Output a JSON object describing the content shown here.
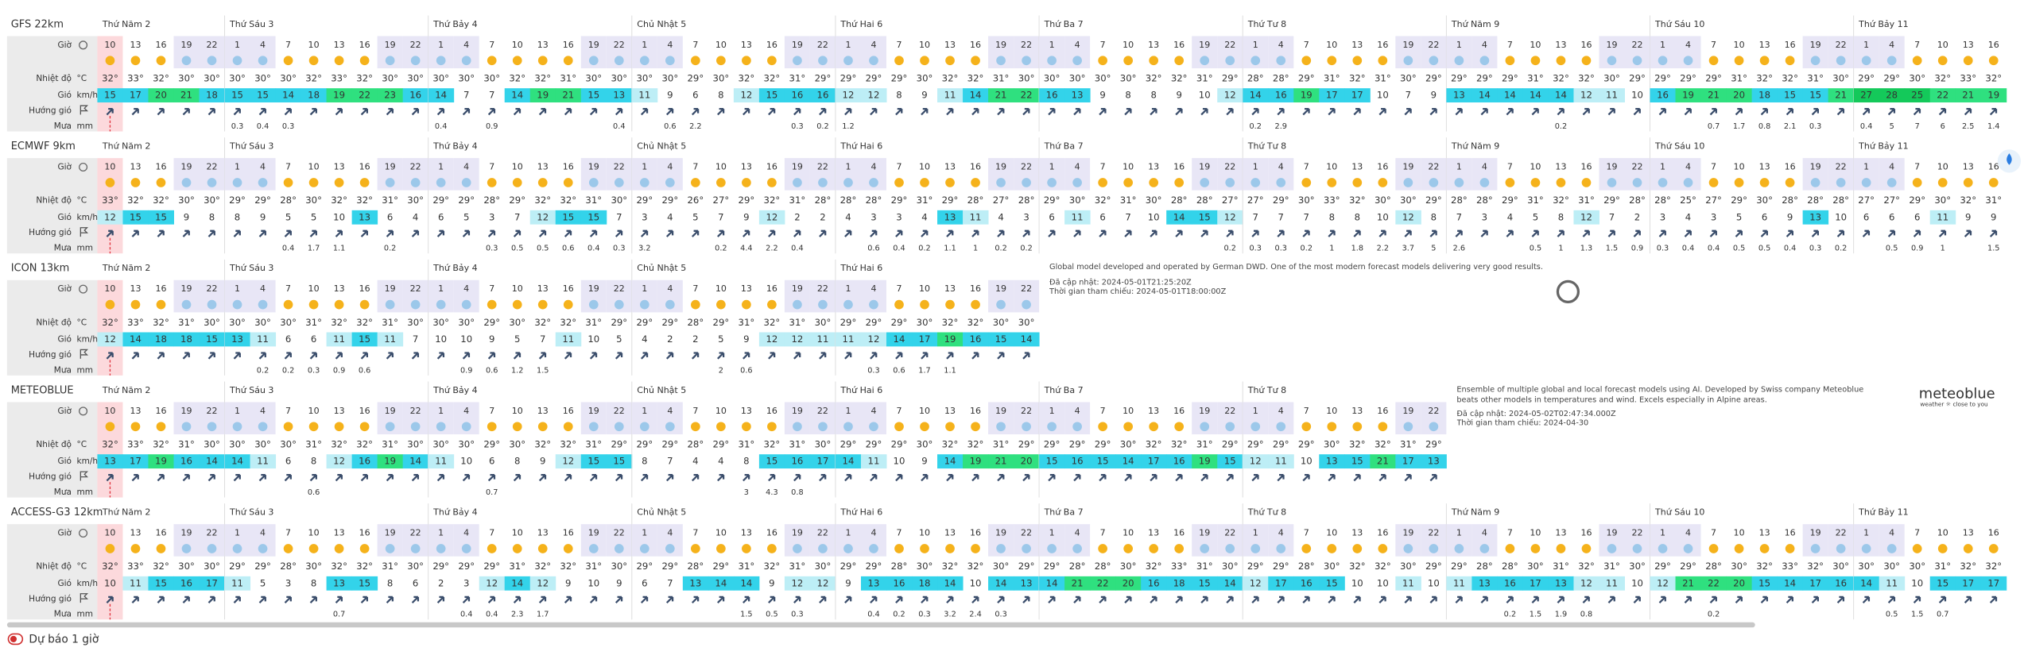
{
  "labels": {
    "hour": "Giờ",
    "temperature": "Nhiệt độ",
    "wind": "Gió",
    "direction": "Hướng gió",
    "rain": "Mưa"
  },
  "units": {
    "temperature": "°C",
    "wind": "km/h",
    "rain": "mm"
  },
  "days": [
    "Thứ Năm 2",
    "Thứ Sáu 3",
    "Thứ Bảy 4",
    "Chủ Nhật 5",
    "Thứ Hai 6",
    "Thứ Ba 7",
    "Thứ Tư 8",
    "Thứ Năm 9",
    "Thứ Sáu 10",
    "Thứ Bảy 11"
  ],
  "hours": [
    10,
    13,
    16,
    19,
    22,
    1,
    4,
    7,
    10,
    13,
    16,
    19,
    22,
    1,
    4,
    7,
    10,
    13,
    16,
    19,
    22,
    1,
    4,
    7,
    10,
    13,
    16,
    19,
    22,
    1,
    4,
    7,
    10,
    13,
    16,
    19,
    22,
    1,
    4,
    7,
    10,
    13,
    16,
    19,
    22,
    1,
    4,
    7,
    10,
    13,
    16,
    19,
    22,
    1,
    4,
    7,
    10,
    13,
    16,
    19,
    22,
    1,
    4,
    7,
    10,
    13,
    16,
    19,
    22,
    1,
    4,
    7,
    10,
    13,
    16
  ],
  "models": [
    {
      "name": "GFS 22km",
      "temperature": [
        "32°",
        "33°",
        "32°",
        "30°",
        "30°",
        "30°",
        "30°",
        "30°",
        "32°",
        "33°",
        "32°",
        "30°",
        "30°",
        "30°",
        "30°",
        "30°",
        "32°",
        "32°",
        "31°",
        "30°",
        "30°",
        "30°",
        "30°",
        "29°",
        "30°",
        "32°",
        "32°",
        "31°",
        "29°",
        "29°",
        "29°",
        "29°",
        "30°",
        "32°",
        "32°",
        "31°",
        "30°",
        "30°",
        "30°",
        "30°",
        "30°",
        "32°",
        "32°",
        "31°",
        "29°",
        "28°",
        "28°",
        "29°",
        "31°",
        "32°",
        "31°",
        "30°",
        "29°",
        "29°",
        "29°",
        "29°",
        "31°",
        "32°",
        "32°",
        "30°",
        "29°",
        "29°",
        "29°",
        "29°",
        "31°",
        "32°",
        "32°",
        "31°",
        "30°",
        "29°",
        "29°",
        "30°",
        "32°",
        "33°",
        "32°"
      ],
      "wind": [
        15,
        17,
        20,
        21,
        18,
        15,
        15,
        14,
        18,
        19,
        22,
        23,
        16,
        14,
        7,
        7,
        14,
        19,
        21,
        15,
        13,
        11,
        9,
        6,
        8,
        12,
        15,
        16,
        16,
        12,
        12,
        8,
        9,
        11,
        14,
        21,
        22,
        16,
        13,
        9,
        8,
        8,
        9,
        10,
        12,
        14,
        16,
        19,
        17,
        17,
        10,
        7,
        9,
        13,
        14,
        14,
        14,
        14,
        12,
        11,
        10,
        16,
        19,
        21,
        20,
        18,
        15,
        15,
        21,
        27,
        28,
        25,
        22,
        21,
        19
      ],
      "rain": [
        null,
        null,
        null,
        null,
        null,
        0.3,
        0.4,
        0.3,
        null,
        null,
        null,
        null,
        null,
        0.4,
        null,
        0.9,
        null,
        null,
        null,
        null,
        0.4,
        null,
        0.6,
        2.2,
        null,
        null,
        null,
        0.3,
        0.2,
        1.2,
        null,
        null,
        null,
        null,
        null,
        null,
        null,
        null,
        null,
        null,
        null,
        null,
        null,
        null,
        null,
        0.2,
        2.9,
        null,
        null,
        null,
        null,
        null,
        null,
        null,
        null,
        null,
        null,
        0.2,
        null,
        null,
        null,
        null,
        null,
        0.7,
        1.7,
        0.8,
        2.1,
        0.3,
        null,
        0.4,
        5,
        7,
        6,
        2.5,
        1.4
      ]
    },
    {
      "name": "ECMWF 9km",
      "temperature": [
        "33°",
        "32°",
        "32°",
        "30°",
        "30°",
        "29°",
        "29°",
        "28°",
        "30°",
        "32°",
        "32°",
        "31°",
        "30°",
        "29°",
        "29°",
        "28°",
        "29°",
        "32°",
        "32°",
        "31°",
        "30°",
        "29°",
        "29°",
        "26°",
        "27°",
        "29°",
        "32°",
        "31°",
        "28°",
        "28°",
        "28°",
        "29°",
        "31°",
        "29°",
        "28°",
        "27°",
        "28°",
        "29°",
        "30°",
        "32°",
        "31°",
        "30°",
        "28°",
        "28°",
        "27°",
        "27°",
        "29°",
        "30°",
        "33°",
        "32°",
        "30°",
        "30°",
        "29°",
        "28°",
        "28°",
        "29°",
        "31°",
        "32°",
        "31°",
        "29°",
        "28°",
        "28°",
        "25°",
        "27°",
        "29°",
        "30°",
        "28°",
        "28°",
        "28°",
        "27°",
        "27°",
        "29°",
        "30°",
        "32°",
        "31°"
      ],
      "wind": [
        12,
        15,
        15,
        9,
        8,
        8,
        9,
        5,
        5,
        10,
        13,
        6,
        4,
        6,
        5,
        3,
        7,
        12,
        15,
        15,
        7,
        3,
        4,
        5,
        7,
        9,
        12,
        2,
        2,
        4,
        3,
        3,
        4,
        13,
        11,
        4,
        3,
        6,
        11,
        6,
        7,
        10,
        14,
        15,
        12,
        7,
        7,
        7,
        8,
        8,
        10,
        12,
        8,
        7,
        3,
        4,
        5,
        8,
        12,
        7,
        2,
        3,
        4,
        3,
        5,
        6,
        9,
        13,
        10,
        6,
        6,
        6,
        11,
        9,
        9
      ],
      "rain": [
        null,
        null,
        null,
        null,
        null,
        null,
        null,
        0.4,
        1.7,
        1.1,
        null,
        0.2,
        null,
        null,
        null,
        0.3,
        0.5,
        0.5,
        0.6,
        0.4,
        0.3,
        3.2,
        null,
        null,
        0.2,
        4.4,
        2.2,
        0.4,
        null,
        null,
        0.6,
        0.4,
        0.2,
        1.1,
        1,
        0.2,
        0.2,
        null,
        null,
        null,
        null,
        null,
        null,
        null,
        0.2,
        0.3,
        0.3,
        0.2,
        1,
        1.8,
        2.2,
        3.7,
        5,
        2.6,
        null,
        null,
        0.5,
        1,
        1.3,
        1.5,
        0.9,
        0.3,
        0.4,
        0.4,
        0.5,
        0.5,
        0.4,
        0.3,
        0.2,
        null,
        0.5,
        0.9,
        1,
        null,
        1.5
      ]
    },
    {
      "name": "ICON 13km",
      "temperature": [
        "32°",
        "33°",
        "32°",
        "31°",
        "30°",
        "30°",
        "30°",
        "30°",
        "31°",
        "32°",
        "32°",
        "31°",
        "30°",
        "30°",
        "30°",
        "29°",
        "30°",
        "32°",
        "32°",
        "31°",
        "29°",
        "29°",
        "29°",
        "28°",
        "29°",
        "31°",
        "32°",
        "31°",
        "30°",
        "29°",
        "29°",
        "29°",
        "30°",
        "32°",
        "32°",
        "30°",
        "30°"
      ],
      "wind": [
        12,
        14,
        18,
        18,
        15,
        13,
        11,
        6,
        6,
        11,
        15,
        11,
        7,
        10,
        10,
        9,
        5,
        7,
        11,
        10,
        5,
        4,
        2,
        2,
        5,
        9,
        12,
        12,
        11,
        11,
        12,
        14,
        17,
        19,
        16,
        15,
        14
      ],
      "rain": [
        null,
        null,
        null,
        null,
        null,
        null,
        0.2,
        0.2,
        0.3,
        0.9,
        0.6,
        null,
        null,
        null,
        0.9,
        0.6,
        1.2,
        1.5,
        null,
        null,
        null,
        null,
        null,
        null,
        2,
        0.6,
        null,
        null,
        null,
        null,
        0.3,
        0.6,
        1.7,
        1.1,
        null,
        null,
        null
      ],
      "info": {
        "description": "Global model developed and operated by German DWD. One of the most modern forecast models delivering very good results.",
        "updated": "Đã cập nhật: 2024-05-01T21:25:20Z",
        "reference": "Thời gian tham chiếu: 2024-05-01T18:00:00Z"
      }
    },
    {
      "name": "METEOBLUE",
      "temperature": [
        "32°",
        "33°",
        "32°",
        "31°",
        "30°",
        "30°",
        "30°",
        "30°",
        "31°",
        "32°",
        "32°",
        "31°",
        "30°",
        "30°",
        "30°",
        "29°",
        "30°",
        "32°",
        "32°",
        "31°",
        "29°",
        "29°",
        "29°",
        "28°",
        "29°",
        "31°",
        "32°",
        "31°",
        "30°",
        "29°",
        "29°",
        "29°",
        "30°",
        "32°",
        "32°",
        "31°",
        "29°",
        "29°",
        "29°",
        "29°",
        "30°",
        "32°",
        "32°",
        "31°",
        "29°",
        "29°",
        "29°",
        "29°",
        "30°",
        "32°",
        "32°",
        "31°",
        "29°"
      ],
      "wind": [
        13,
        17,
        19,
        16,
        14,
        14,
        11,
        6,
        8,
        12,
        16,
        19,
        14,
        11,
        10,
        6,
        8,
        9,
        12,
        15,
        15,
        8,
        7,
        4,
        4,
        8,
        15,
        16,
        17,
        14,
        11,
        10,
        9,
        14,
        19,
        21,
        20,
        15,
        16,
        15,
        14,
        17,
        16,
        19,
        15,
        12,
        11,
        10,
        13,
        15,
        21,
        17,
        13
      ],
      "rain": [
        null,
        null,
        null,
        null,
        null,
        null,
        null,
        null,
        0.6,
        null,
        null,
        null,
        null,
        null,
        null,
        0.7,
        null,
        null,
        null,
        null,
        null,
        null,
        null,
        null,
        null,
        3,
        4.3,
        0.8,
        null,
        null,
        null,
        null,
        null,
        null,
        null,
        null,
        null,
        null,
        null,
        null,
        null,
        null,
        null,
        null,
        null,
        null,
        null,
        null,
        null,
        null,
        null,
        null,
        null
      ],
      "info": {
        "description": "Ensemble of multiple global and local forecast models using AI. Developed by Swiss company Meteoblue beats other models in temperatures and wind. Excels especially in Alpine areas.",
        "updated": "Đã cập nhật: 2024-05-02T02:47:34.000Z",
        "reference": "Thời gian tham chiếu: 2024-04-30"
      },
      "logo": {
        "name": "meteoblue",
        "tagline": "weather ☼ close to you"
      }
    },
    {
      "name": "ACCESS-G3 12km",
      "temperature": [
        "32°",
        "33°",
        "32°",
        "30°",
        "30°",
        "29°",
        "29°",
        "28°",
        "30°",
        "32°",
        "32°",
        "31°",
        "30°",
        "29°",
        "29°",
        "29°",
        "31°",
        "32°",
        "32°",
        "31°",
        "30°",
        "29°",
        "29°",
        "28°",
        "29°",
        "31°",
        "32°",
        "31°",
        "30°",
        "29°",
        "29°",
        "28°",
        "30°",
        "32°",
        "32°",
        "30°",
        "29°",
        "29°",
        "28°",
        "28°",
        "30°",
        "32°",
        "33°",
        "31°",
        "30°",
        "29°",
        "29°",
        "28°",
        "30°",
        "32°",
        "32°",
        "30°",
        "29°",
        "29°",
        "28°",
        "28°",
        "30°",
        "31°",
        "32°",
        "31°",
        "30°",
        "29°",
        "29°",
        "28°",
        "30°",
        "32°",
        "33°",
        "32°",
        "30°",
        "30°",
        "30°",
        "30°",
        "31°",
        "32°",
        "32°"
      ],
      "wind": [
        10,
        11,
        15,
        16,
        17,
        11,
        5,
        3,
        8,
        13,
        15,
        8,
        6,
        2,
        3,
        12,
        14,
        12,
        9,
        10,
        9,
        6,
        7,
        13,
        14,
        14,
        9,
        12,
        12,
        9,
        13,
        16,
        18,
        14,
        10,
        14,
        13,
        14,
        21,
        22,
        20,
        16,
        18,
        15,
        14,
        12,
        17,
        16,
        15,
        10,
        10,
        11,
        10,
        11,
        13,
        16,
        17,
        13,
        12,
        11,
        10,
        12,
        21,
        22,
        20,
        15,
        14,
        17,
        16,
        14,
        11,
        10,
        15,
        17,
        17
      ],
      "rain": [
        null,
        null,
        null,
        null,
        null,
        null,
        null,
        null,
        null,
        0.7,
        null,
        null,
        null,
        null,
        0.4,
        0.4,
        2.3,
        1.7,
        null,
        null,
        null,
        null,
        null,
        null,
        null,
        1.5,
        0.5,
        0.3,
        null,
        null,
        0.4,
        0.2,
        0.3,
        3.2,
        2.4,
        0.3,
        null,
        null,
        null,
        null,
        null,
        null,
        null,
        null,
        null,
        null,
        null,
        null,
        null,
        null,
        null,
        null,
        null,
        null,
        null,
        0.2,
        1.5,
        1.9,
        0.8,
        null,
        null,
        null,
        null,
        0.2,
        null,
        null,
        null,
        null,
        null,
        null,
        0.5,
        1.5,
        0.7,
        null,
        null
      ]
    }
  ],
  "footer": {
    "toggle": "Dự báo 1 giờ"
  }
}
